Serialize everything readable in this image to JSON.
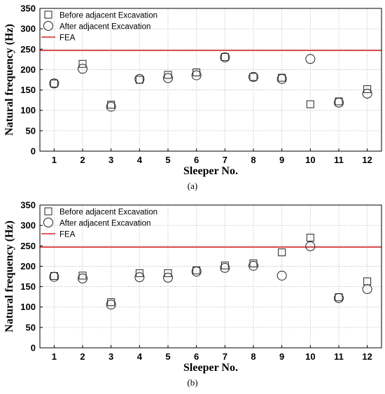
{
  "chart_data": [
    {
      "type": "scatter",
      "subplot_label": "(a)",
      "xlabel": "Sleeper No.",
      "ylabel": "Natural frequency (Hz)",
      "xlim": [
        0.5,
        12.5
      ],
      "ylim": [
        0,
        350
      ],
      "x_ticks": [
        1,
        2,
        3,
        4,
        5,
        6,
        7,
        8,
        9,
        10,
        11,
        12
      ],
      "y_ticks": [
        0,
        50,
        100,
        150,
        200,
        250,
        300,
        350
      ],
      "grid": true,
      "legend_position": "top-left",
      "x": [
        1,
        2,
        3,
        4,
        5,
        6,
        7,
        8,
        9,
        10,
        11,
        12
      ],
      "series": [
        {
          "name": "Before adjacent Excavation",
          "marker": "square",
          "values": [
            166,
            214,
            114,
            175,
            187,
            193,
            231,
            182,
            180,
            115,
            122,
            152
          ]
        },
        {
          "name": "After adjacent Excavation",
          "marker": "circle",
          "values": [
            166,
            202,
            109,
            177,
            179,
            186,
            230,
            182,
            177,
            226,
            119,
            141
          ]
        }
      ],
      "reference_line": {
        "name": "FEA",
        "value": 247,
        "color": "#d62728"
      }
    },
    {
      "type": "scatter",
      "subplot_label": "(b)",
      "xlabel": "Sleeper No.",
      "ylabel": "Natural frequency (Hz)",
      "xlim": [
        0.5,
        12.5
      ],
      "ylim": [
        0,
        350
      ],
      "x_ticks": [
        1,
        2,
        3,
        4,
        5,
        6,
        7,
        8,
        9,
        10,
        11,
        12
      ],
      "y_ticks": [
        0,
        50,
        100,
        150,
        200,
        250,
        300,
        350
      ],
      "grid": true,
      "legend_position": "top-left",
      "x": [
        1,
        2,
        3,
        4,
        5,
        6,
        7,
        8,
        9,
        10,
        11,
        12
      ],
      "series": [
        {
          "name": "Before adjacent Excavation",
          "marker": "square",
          "values": [
            176,
            177,
            112,
            183,
            183,
            190,
            202,
            207,
            234,
            270,
            124,
            163
          ]
        },
        {
          "name": "After adjacent Excavation",
          "marker": "circle",
          "values": [
            174,
            170,
            106,
            173,
            172,
            187,
            196,
            201,
            177,
            249,
            122,
            144
          ]
        }
      ],
      "reference_line": {
        "name": "FEA",
        "value": 247,
        "color": "#d62728"
      }
    }
  ]
}
